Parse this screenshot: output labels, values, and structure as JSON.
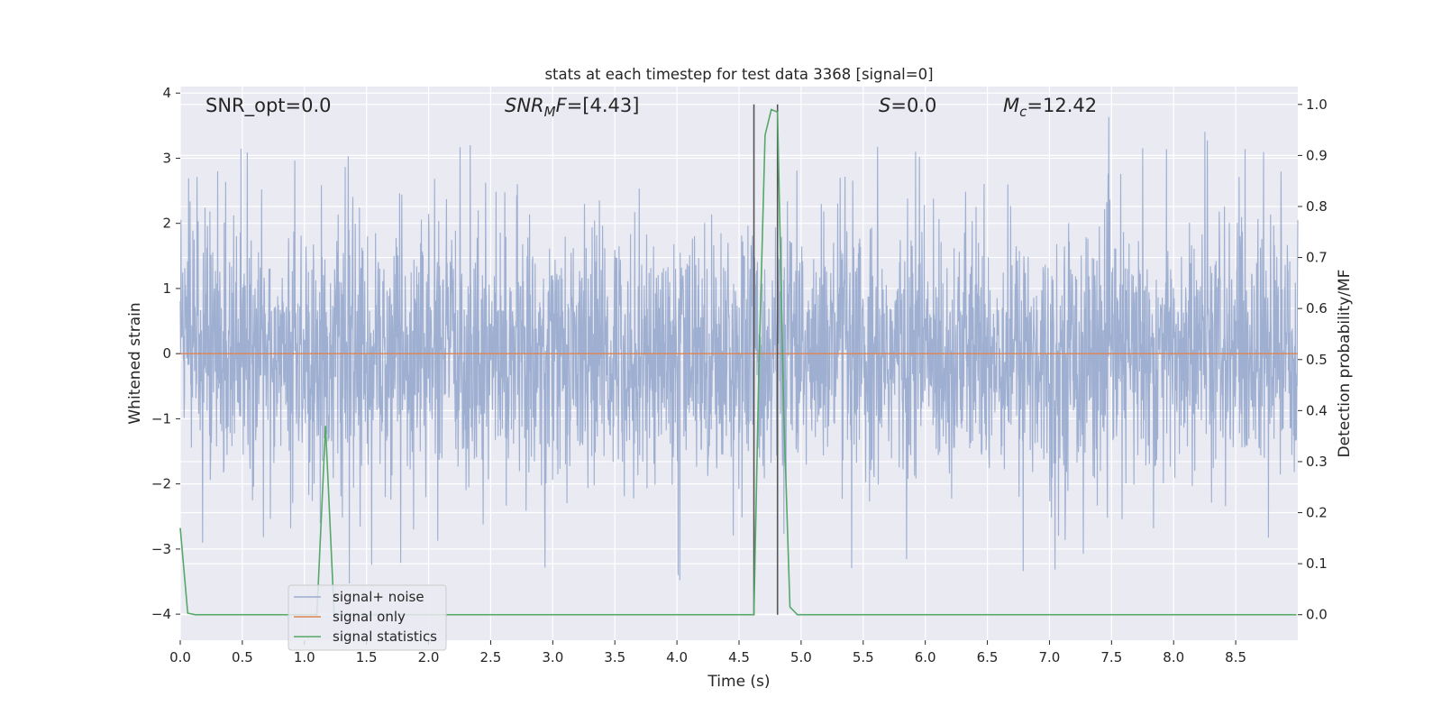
{
  "chart_data": {
    "type": "line",
    "title": "stats at each timestep for test data 3368 [signal=0]",
    "xlabel": "Time (s)",
    "ylabel_left": "Whitened strain",
    "ylabel_right": "Detection probability/MF",
    "xlim": [
      0.0,
      9.0
    ],
    "ylim_left": [
      -4.4,
      4.1
    ],
    "ylim_right": [
      -0.05,
      1.035
    ],
    "x_ticks": [
      "0.0",
      "0.5",
      "1.0",
      "1.5",
      "2.0",
      "2.5",
      "3.0",
      "3.5",
      "4.0",
      "4.5",
      "5.0",
      "5.5",
      "6.0",
      "6.5",
      "7.0",
      "7.5",
      "8.0",
      "8.5"
    ],
    "y_ticks_left": [
      "4",
      "3",
      "2",
      "1",
      "0",
      "−1",
      "−2",
      "−3",
      "−4"
    ],
    "y_ticks_right": [
      "1.0",
      "0.9",
      "0.8",
      "0.7",
      "0.6",
      "0.5",
      "0.4",
      "0.3",
      "0.2",
      "0.1",
      "0.0"
    ],
    "annotations": {
      "snr_opt": "SNR_opt=0.0",
      "snr_mf_main": "SNR",
      "snr_mf_sub": "M",
      "snr_mf_f": "F",
      "snr_mf_value": "=[4.43]",
      "s_label": "S",
      "s_value": "=0.0",
      "mc_label": "M",
      "mc_sub": "c",
      "mc_value": "=12.42"
    },
    "series": [
      {
        "name": "signal+ noise",
        "color": "#9aaccf",
        "axis": "left",
        "description": "whitened noise, roughly within ±2.5 with spikes up to 3.7 and down to -4"
      },
      {
        "name": "signal only",
        "color": "#dd8452",
        "axis": "left",
        "x": [
          0.0,
          9.0
        ],
        "y": [
          0.0,
          0.0
        ]
      },
      {
        "name": "signal statistics",
        "color": "#55a868",
        "axis": "right",
        "x": [
          0.0,
          0.06,
          0.12,
          1.1,
          1.17,
          1.24,
          1.3,
          4.62,
          4.66,
          4.71,
          4.76,
          4.81,
          4.86,
          4.91,
          4.97,
          8.99
        ],
        "y": [
          0.17,
          0.003,
          0.0,
          0.0,
          0.37,
          0.0,
          0.0,
          0.0,
          0.48,
          0.94,
          0.99,
          0.985,
          0.4,
          0.015,
          0.0,
          0.0
        ]
      }
    ],
    "vertical_lines": [
      4.62,
      4.81
    ],
    "vertical_line_color": "#555555",
    "vertical_line_range_right": [
      0.0,
      1.0
    ],
    "legend": {
      "placement": "lower-left",
      "entries": [
        "signal+ noise",
        "signal only",
        "signal statistics"
      ]
    }
  }
}
